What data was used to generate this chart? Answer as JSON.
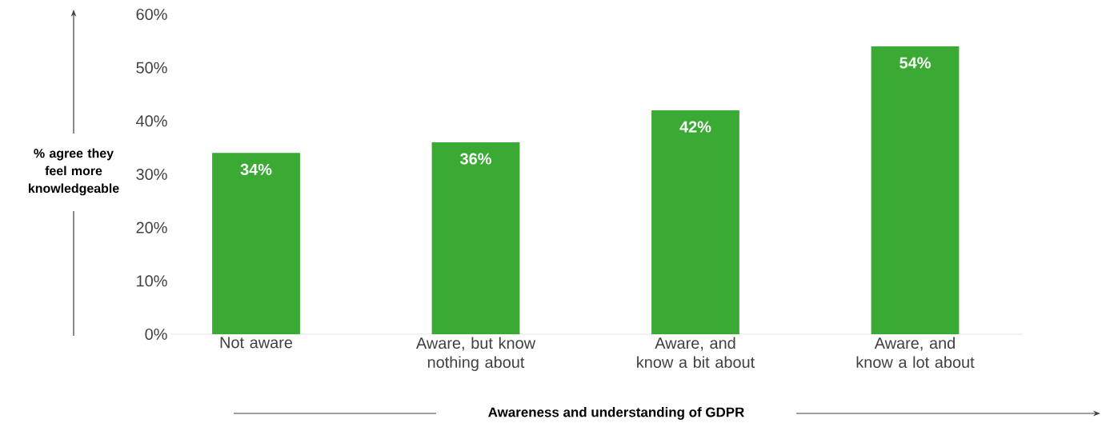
{
  "chart_data": {
    "type": "bar",
    "xlabel": "Awareness and understanding of GDPR",
    "ylabel": "% agree they feel more knowledgeable",
    "categories": [
      "Not aware",
      "Aware, but know nothing about",
      "Aware, and know a bit about",
      "Aware, and know a lot about"
    ],
    "values": [
      34,
      36,
      42,
      54
    ],
    "color": "#3aaa35",
    "value_labels": [
      "34%",
      "36%",
      "42%",
      "54%"
    ],
    "ylim": [
      0,
      60
    ],
    "yticks": [
      {
        "value": 0,
        "label": "0%"
      },
      {
        "value": 10,
        "label": "10%"
      },
      {
        "value": 20,
        "label": "20%"
      },
      {
        "value": 30,
        "label": "30%"
      },
      {
        "value": 40,
        "label": "40%"
      },
      {
        "value": 50,
        "label": "50%"
      },
      {
        "value": 60,
        "label": "60%"
      }
    ]
  }
}
